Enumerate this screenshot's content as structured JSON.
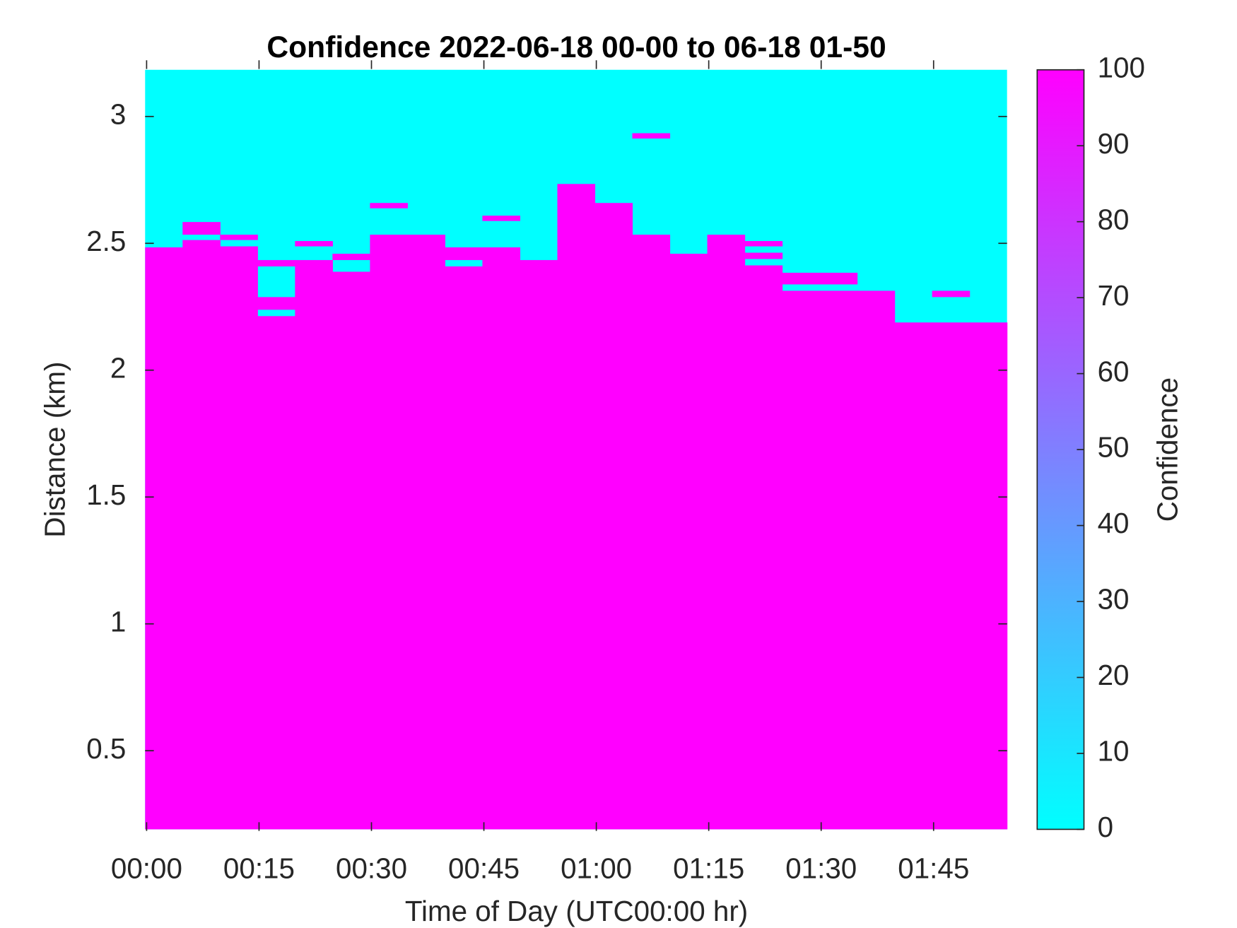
{
  "chart_data": {
    "type": "heatmap",
    "title": "Confidence 2022-06-18 00-00 to 06-18 01-50",
    "xlabel": "Time of Day (UTC00:00 hr)",
    "ylabel": "Distance (km)",
    "colorbar_label": "Confidence",
    "colormap": "cool",
    "x_edges": [
      -0.2,
      4.8,
      9.8,
      14.8,
      19.8,
      24.8,
      29.8,
      34.8,
      39.8,
      44.8,
      49.8,
      54.8,
      59.8,
      64.8,
      69.8,
      74.8,
      79.8,
      84.8,
      89.8,
      94.8,
      99.8,
      104.8,
      109.8,
      114.8
    ],
    "xlim": [
      -0.2,
      114.8
    ],
    "xticks": [
      {
        "value": 0,
        "label": "00:00"
      },
      {
        "value": 15,
        "label": "00:15"
      },
      {
        "value": 30,
        "label": "00:30"
      },
      {
        "value": 45,
        "label": "00:45"
      },
      {
        "value": 60,
        "label": "01:00"
      },
      {
        "value": 75,
        "label": "01:15"
      },
      {
        "value": 90,
        "label": "01:30"
      },
      {
        "value": 105,
        "label": "01:45"
      }
    ],
    "ylim": [
      0.19,
      3.184
    ],
    "yticks": [
      0.5,
      1,
      1.5,
      2,
      2.5,
      3
    ],
    "clim": [
      0,
      100
    ],
    "cticks": [
      0,
      10,
      20,
      30,
      40,
      50,
      60,
      70,
      80,
      90,
      100
    ],
    "background_value": 0,
    "columns": [
      [
        {
          "y0": 0.19,
          "y1": 2.484,
          "value": 100
        }
      ],
      [
        {
          "y0": 0.19,
          "y1": 2.513,
          "value": 100
        },
        {
          "y0": 2.534,
          "y1": 2.584,
          "value": 100
        }
      ],
      [
        {
          "y0": 0.19,
          "y1": 2.488,
          "value": 100
        },
        {
          "y0": 2.513,
          "y1": 2.534,
          "value": 100
        }
      ],
      [
        {
          "y0": 0.19,
          "y1": 2.213,
          "value": 100
        },
        {
          "y0": 2.238,
          "y1": 2.288,
          "value": 100
        },
        {
          "y0": 2.409,
          "y1": 2.434,
          "value": 100
        }
      ],
      [
        {
          "y0": 0.19,
          "y1": 2.434,
          "value": 100
        },
        {
          "y0": 2.488,
          "y1": 2.509,
          "value": 100
        }
      ],
      [
        {
          "y0": 0.19,
          "y1": 2.388,
          "value": 100
        },
        {
          "y0": 2.434,
          "y1": 2.459,
          "value": 100
        }
      ],
      [
        {
          "y0": 0.19,
          "y1": 2.534,
          "value": 100
        },
        {
          "y0": 2.638,
          "y1": 2.659,
          "value": 100
        }
      ],
      [
        {
          "y0": 0.19,
          "y1": 2.534,
          "value": 100
        }
      ],
      [
        {
          "y0": 0.19,
          "y1": 2.409,
          "value": 100
        },
        {
          "y0": 2.434,
          "y1": 2.484,
          "value": 100
        }
      ],
      [
        {
          "y0": 0.19,
          "y1": 2.484,
          "value": 100
        },
        {
          "y0": 2.588,
          "y1": 2.609,
          "value": 100
        }
      ],
      [
        {
          "y0": 0.19,
          "y1": 2.434,
          "value": 100
        }
      ],
      [
        {
          "y0": 0.19,
          "y1": 2.734,
          "value": 100
        }
      ],
      [
        {
          "y0": 0.19,
          "y1": 2.659,
          "value": 100
        }
      ],
      [
        {
          "y0": 0.19,
          "y1": 2.534,
          "value": 100
        },
        {
          "y0": 2.913,
          "y1": 2.934,
          "value": 100
        }
      ],
      [
        {
          "y0": 0.19,
          "y1": 2.459,
          "value": 100
        }
      ],
      [
        {
          "y0": 0.19,
          "y1": 2.534,
          "value": 100
        }
      ],
      [
        {
          "y0": 0.19,
          "y1": 2.413,
          "value": 100
        },
        {
          "y0": 2.438,
          "y1": 2.463,
          "value": 100
        },
        {
          "y0": 2.488,
          "y1": 2.509,
          "value": 100
        }
      ],
      [
        {
          "y0": 0.19,
          "y1": 2.313,
          "value": 100
        },
        {
          "y0": 2.338,
          "y1": 2.384,
          "value": 100
        }
      ],
      [
        {
          "y0": 0.19,
          "y1": 2.313,
          "value": 100
        },
        {
          "y0": 2.338,
          "y1": 2.384,
          "value": 100
        }
      ],
      [
        {
          "y0": 0.19,
          "y1": 2.313,
          "value": 100
        }
      ],
      [
        {
          "y0": 0.19,
          "y1": 2.188,
          "value": 100
        }
      ],
      [
        {
          "y0": 0.19,
          "y1": 2.188,
          "value": 100
        },
        {
          "y0": 2.288,
          "y1": 2.313,
          "value": 100
        }
      ],
      [
        {
          "y0": 0.19,
          "y1": 2.188,
          "value": 100
        }
      ]
    ]
  }
}
